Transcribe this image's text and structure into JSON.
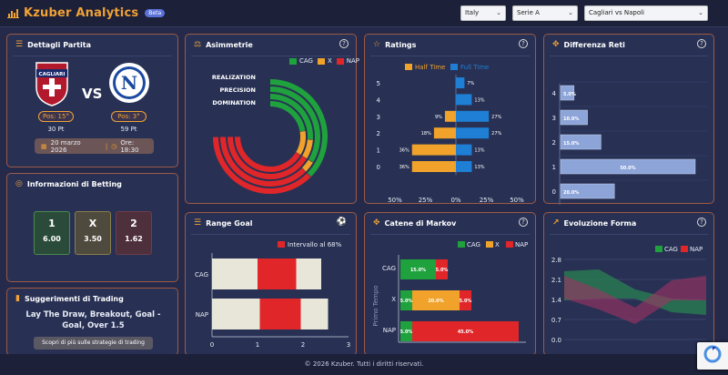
{
  "header": {
    "brand": "Kzuber Analytics",
    "beta": "Beta",
    "selects": [
      "Italy",
      "Serie A",
      "Cagliari vs Napoli"
    ]
  },
  "match": {
    "title": "Dettagli Partita",
    "vs": "VS",
    "home_pos": "Pos: 15°",
    "away_pos": "Pos: 3°",
    "home_pts": "30 Pt",
    "away_pts": "59 Pt",
    "date": "20 marzo 2026",
    "time": "Ore: 18:30",
    "home_logo_text": "CAGLIARI"
  },
  "betting": {
    "title": "Informazioni di Betting",
    "odds": [
      {
        "label": "1",
        "value": "6.00"
      },
      {
        "label": "X",
        "value": "3.50"
      },
      {
        "label": "2",
        "value": "1.62"
      }
    ]
  },
  "trading": {
    "title": "Suggerimenti di Trading",
    "text": "Lay The Draw, Breakout, Goal - Goal, Over 1.5",
    "button": "Scopri di più sulle strategie di trading"
  },
  "asym": {
    "title": "Asimmetrie",
    "legend": [
      "CAG",
      "X",
      "NAP"
    ],
    "labels": [
      "REALIZATION",
      "PRECISION",
      "DOMINATION"
    ],
    "rings": [
      [
        0.5,
        0.0,
        0.5
      ],
      [
        0.45,
        0.05,
        0.5
      ],
      [
        0.35,
        0.1,
        0.55
      ],
      [
        0.3,
        0.15,
        0.55
      ]
    ]
  },
  "ratings": {
    "title": "Ratings",
    "legend": [
      "Half Time",
      "Full Time"
    ],
    "cats": [
      "5",
      "4",
      "3",
      "2",
      "1",
      "0"
    ],
    "ht": [
      0,
      0,
      9,
      18,
      36,
      36
    ],
    "ft": [
      7,
      13,
      27,
      27,
      13,
      13
    ],
    "xticks": [
      "50%",
      "25%",
      "0%",
      "25%",
      "50%"
    ]
  },
  "diff": {
    "title": "Differenza Reti",
    "cats": [
      "4",
      "3",
      "2",
      "1",
      "0"
    ],
    "values": [
      5.0,
      10.0,
      15.0,
      50.0,
      20.0
    ]
  },
  "range": {
    "title": "Range Goal",
    "legend": "Intervallo al 68%",
    "teams": [
      "CAG",
      "NAP"
    ],
    "bars": [
      {
        "min": 0,
        "lo": 1.0,
        "hi": 1.85,
        "max": 2.4
      },
      {
        "min": 0,
        "lo": 1.05,
        "hi": 1.95,
        "max": 2.55
      }
    ],
    "xticks": [
      "0",
      "1",
      "2",
      "3"
    ]
  },
  "markov": {
    "title": "Catene di Markov",
    "legend": [
      "CAG",
      "X",
      "NAP"
    ],
    "ylabel": "Primo Tempo",
    "rows": [
      {
        "label": "CAG",
        "v": [
          15.0,
          0,
          5.0
        ]
      },
      {
        "label": "X",
        "v": [
          5.0,
          20.0,
          5.0
        ]
      },
      {
        "label": "NAP",
        "v": [
          5.0,
          0,
          45.0
        ]
      }
    ]
  },
  "forma": {
    "title": "Evoluzione Forma",
    "legend": [
      "CAG",
      "NAP"
    ],
    "yticks": [
      "2.8",
      "2.1",
      "1.4",
      "0.7",
      "0.0"
    ]
  },
  "footer": "© 2026 Kzuber. Tutti i diritti riservati.",
  "colors": {
    "green": "#1fa13d",
    "orange": "#f0a22a",
    "red": "#e1262a",
    "blue": "#1f7fd4",
    "bar": "#8da4d8"
  }
}
